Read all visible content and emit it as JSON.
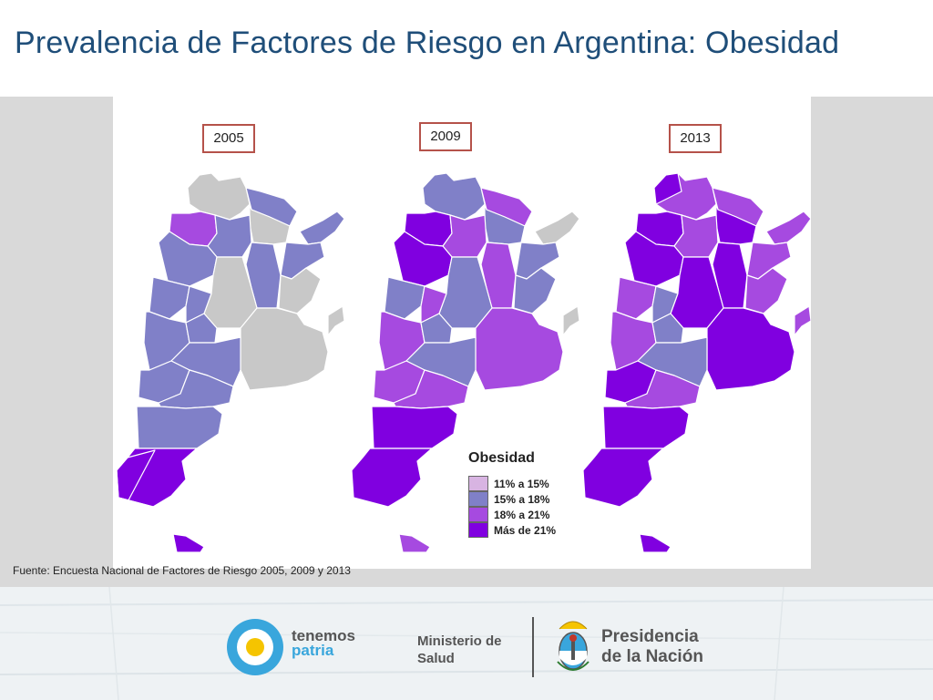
{
  "title": "Prevalencia de Factores de Riesgo en Argentina: Obesidad",
  "maps": [
    {
      "year": "2005"
    },
    {
      "year": "2009"
    },
    {
      "year": "2013"
    }
  ],
  "legend": {
    "title": "Obesidad",
    "items": [
      {
        "label": "11% a 15%",
        "color": "#d8b4e2"
      },
      {
        "label": "15% a 18%",
        "color": "#8080c8"
      },
      {
        "label": "18% a 21%",
        "color": "#a64ae0"
      },
      {
        "label": "Más de 21%",
        "color": "#8000e0"
      }
    ],
    "no_data_color": "#c8c8c8"
  },
  "source": "Fuente: Encuesta Nacional de Factores de Riesgo 2005, 2009 y 2013",
  "footer": {
    "tenemos_line1": "tenemos",
    "tenemos_line2": "patria",
    "ministerio_line1": "Ministerio de",
    "ministerio_line2": "Salud",
    "presidencia_line1": "Presidencia",
    "presidencia_line2": "de la Nación"
  }
}
